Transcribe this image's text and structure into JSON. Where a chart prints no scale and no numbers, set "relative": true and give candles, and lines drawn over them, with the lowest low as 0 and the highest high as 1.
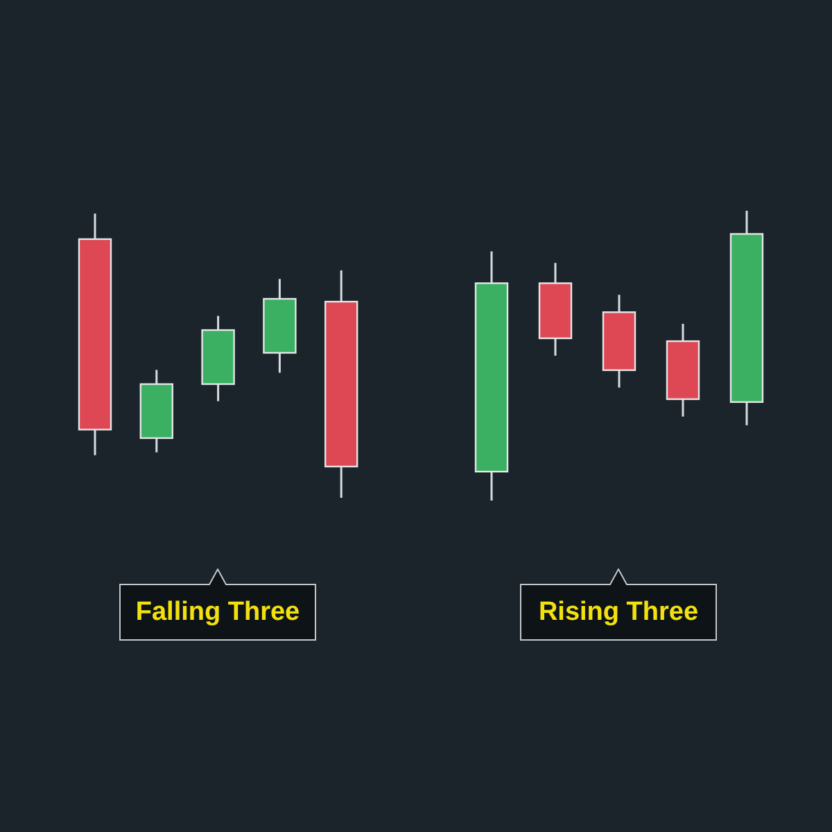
{
  "chart_data": [
    {
      "type": "candlestick",
      "title": "Falling Three",
      "relative": true,
      "categories": [
        null,
        null,
        null,
        null,
        null
      ],
      "ohlc": [
        [
          0.91,
          1,
          0.15,
          0.24
        ],
        [
          0.21,
          0.45,
          0.16,
          0.4
        ],
        [
          0.4,
          0.64,
          0.34,
          0.59
        ],
        [
          0.51,
          0.77,
          0.44,
          0.7
        ],
        [
          0.69,
          0.8,
          0,
          0.11
        ]
      ],
      "colors": [
        "#dd4854",
        "#3bb062",
        "#3bb062",
        "#3bb062",
        "#dd4854"
      ]
    },
    {
      "type": "candlestick",
      "title": "Rising Three",
      "relative": true,
      "categories": [
        null,
        null,
        null,
        null,
        null
      ],
      "ohlc": [
        [
          0.1,
          0.86,
          0,
          0.75
        ],
        [
          0.75,
          0.82,
          0.5,
          0.56
        ],
        [
          0.65,
          0.71,
          0.39,
          0.45
        ],
        [
          0.55,
          0.61,
          0.29,
          0.35
        ],
        [
          0.34,
          1,
          0.26,
          0.92
        ]
      ],
      "colors": [
        "#3bb062",
        "#dd4854",
        "#dd4854",
        "#dd4854",
        "#3bb062"
      ]
    }
  ]
}
